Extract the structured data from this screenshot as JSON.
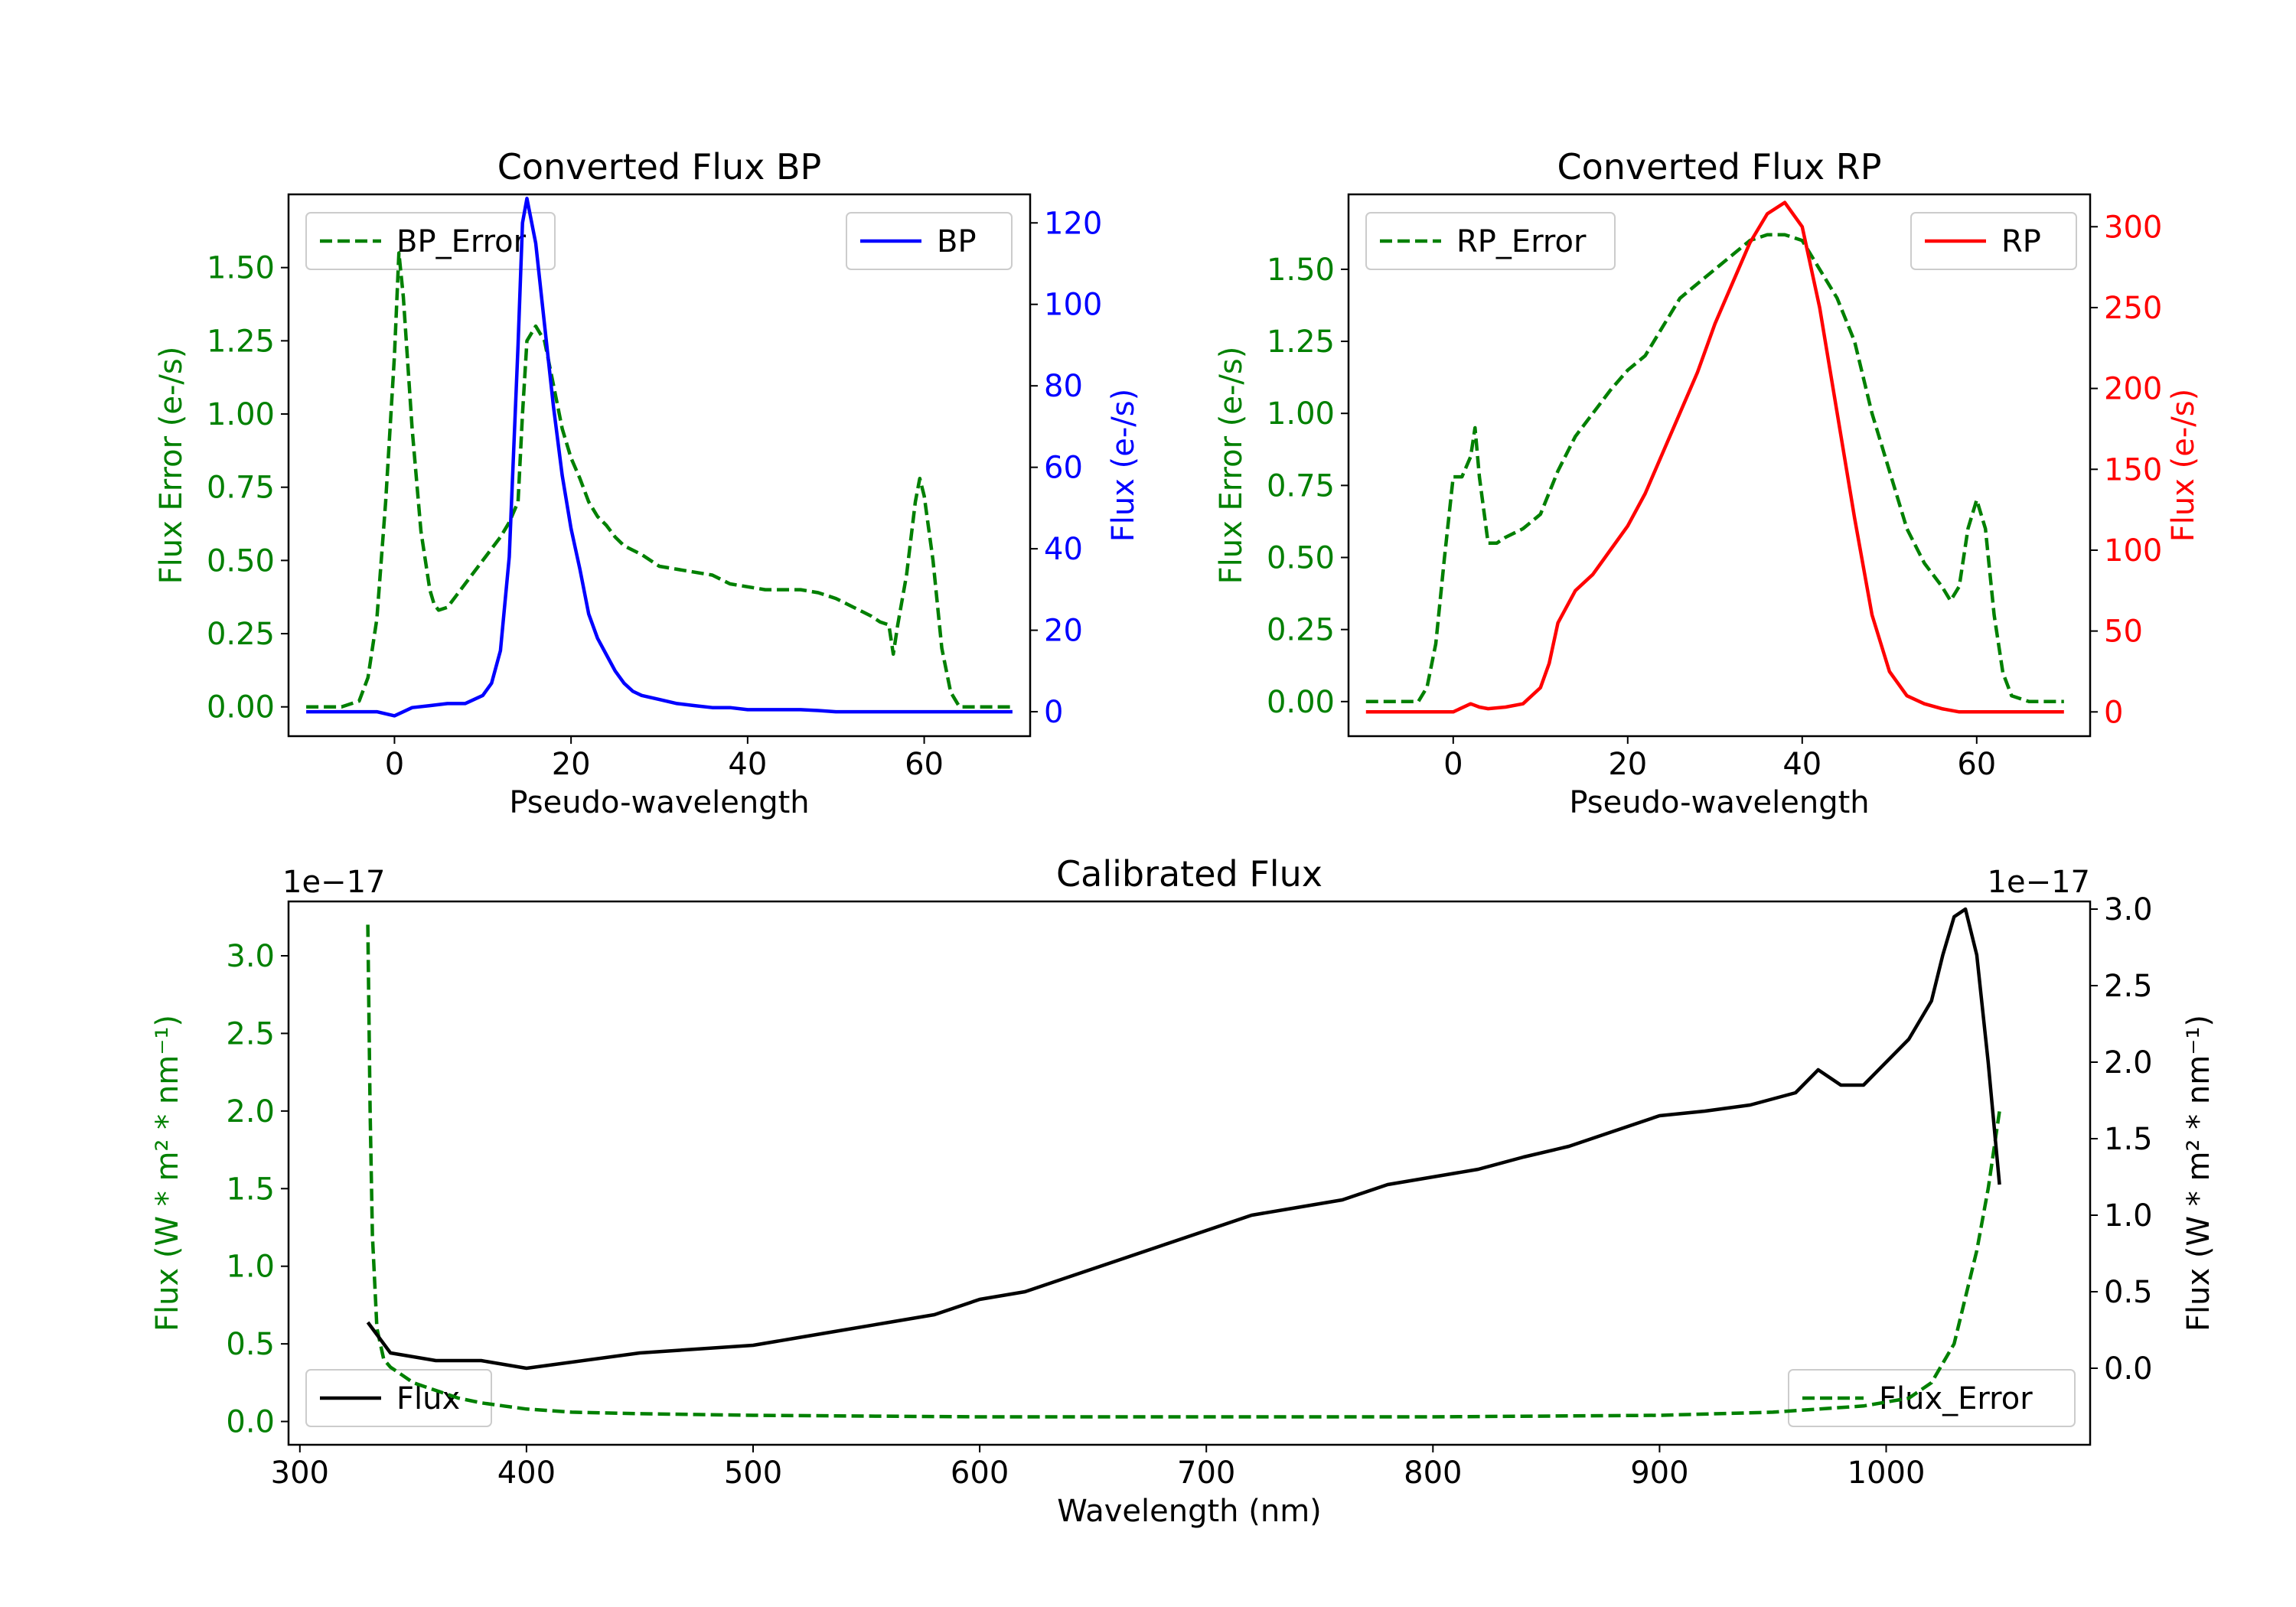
{
  "colors": {
    "error": "#008000",
    "bp": "#0000ff",
    "rp": "#ff0000",
    "flux": "#000000",
    "axis": "#000000"
  },
  "chart_data": [
    {
      "type": "line",
      "title": "Converted Flux BP",
      "xlabel": "Pseudo-wavelength",
      "ylabel": "Flux Error (e-/s)",
      "y2label": "Flux (e-/s)",
      "xlim": [
        -12,
        72
      ],
      "ylim": [
        -0.1,
        1.75
      ],
      "y2lim": [
        -6,
        127
      ],
      "xticks": [
        0,
        20,
        40,
        60
      ],
      "yticks": [
        0.0,
        0.25,
        0.5,
        0.75,
        1.0,
        1.25,
        1.5
      ],
      "ytick_labels": [
        "0.00",
        "0.25",
        "0.50",
        "0.75",
        "1.00",
        "1.25",
        "1.50"
      ],
      "y2ticks": [
        0,
        20,
        40,
        60,
        80,
        100,
        120
      ],
      "legend_left": "top-left",
      "legend_right": "top-right",
      "series": [
        {
          "name": "BP_Error",
          "axis": "left",
          "style": "dashed",
          "color_key": "error",
          "x": [
            -10,
            -6,
            -4,
            -3,
            -2,
            -1,
            0,
            0.5,
            1,
            2,
            3,
            4,
            4.5,
            5,
            6,
            7,
            8,
            10,
            12,
            13,
            14,
            14.5,
            15,
            16,
            17,
            18,
            19,
            20,
            21,
            22,
            23,
            24,
            25,
            26,
            28,
            30,
            32,
            34,
            36,
            38,
            40,
            42,
            44,
            46,
            48,
            50,
            52,
            54,
            55,
            56,
            56.5,
            57,
            58,
            59,
            59.5,
            60,
            61,
            62,
            63,
            64,
            66,
            68,
            70
          ],
          "values": [
            0,
            0,
            0.02,
            0.1,
            0.3,
            0.7,
            1.2,
            1.55,
            1.4,
            0.95,
            0.6,
            0.4,
            0.35,
            0.33,
            0.34,
            0.38,
            0.42,
            0.5,
            0.58,
            0.63,
            0.7,
            1.0,
            1.25,
            1.3,
            1.25,
            1.1,
            0.95,
            0.85,
            0.78,
            0.7,
            0.65,
            0.62,
            0.58,
            0.55,
            0.52,
            0.48,
            0.47,
            0.46,
            0.45,
            0.42,
            0.41,
            0.4,
            0.4,
            0.4,
            0.39,
            0.37,
            0.34,
            0.31,
            0.29,
            0.28,
            0.18,
            0.28,
            0.45,
            0.7,
            0.78,
            0.72,
            0.5,
            0.2,
            0.05,
            0,
            0,
            0,
            0
          ]
        },
        {
          "name": "BP",
          "axis": "right",
          "style": "solid",
          "color_key": "bp",
          "x": [
            -10,
            -4,
            -2,
            0,
            1,
            2,
            4,
            6,
            8,
            10,
            11,
            12,
            13,
            14,
            14.5,
            15,
            16,
            17,
            18,
            19,
            20,
            21,
            22,
            23,
            24,
            25,
            26,
            27,
            28,
            30,
            32,
            34,
            36,
            38,
            40,
            42,
            44,
            46,
            48,
            50,
            52,
            54,
            56,
            58,
            60,
            62,
            64,
            66,
            68,
            70
          ],
          "values": [
            0,
            0,
            0,
            -1,
            0,
            1,
            1.5,
            2,
            2,
            4,
            7,
            15,
            38,
            90,
            120,
            126,
            115,
            95,
            75,
            58,
            45,
            35,
            24,
            18,
            14,
            10,
            7,
            5,
            4,
            3,
            2,
            1.5,
            1,
            1,
            0.5,
            0.5,
            0.5,
            0.5,
            0.3,
            0,
            0,
            0,
            0,
            0,
            0,
            0,
            0,
            0,
            0,
            0
          ]
        }
      ]
    },
    {
      "type": "line",
      "title": "Converted Flux RP",
      "xlabel": "Pseudo-wavelength",
      "ylabel": "Flux Error (e-/s)",
      "y2label": "Flux (e-/s)",
      "xlim": [
        -12,
        73
      ],
      "ylim": [
        -0.12,
        1.76
      ],
      "y2lim": [
        -15,
        320
      ],
      "xticks": [
        0,
        20,
        40,
        60
      ],
      "yticks": [
        0.0,
        0.25,
        0.5,
        0.75,
        1.0,
        1.25,
        1.5
      ],
      "ytick_labels": [
        "0.00",
        "0.25",
        "0.50",
        "0.75",
        "1.00",
        "1.25",
        "1.50"
      ],
      "y2ticks": [
        0,
        50,
        100,
        150,
        200,
        250,
        300
      ],
      "legend_left": "top-left",
      "legend_right": "top-right",
      "series": [
        {
          "name": "RP_Error",
          "axis": "left",
          "style": "dashed",
          "color_key": "error",
          "x": [
            -10,
            -4,
            -3,
            -2,
            -1,
            0,
            1,
            2,
            2.5,
            3,
            4,
            5,
            6,
            8,
            10,
            12,
            14,
            16,
            18,
            20,
            22,
            24,
            26,
            28,
            30,
            32,
            34,
            36,
            38,
            40,
            42,
            44,
            46,
            48,
            50,
            52,
            54,
            56,
            57,
            58,
            59,
            60,
            61,
            62,
            63,
            64,
            66,
            70
          ],
          "values": [
            0,
            0,
            0.05,
            0.2,
            0.5,
            0.78,
            0.78,
            0.85,
            0.95,
            0.78,
            0.55,
            0.55,
            0.57,
            0.6,
            0.65,
            0.8,
            0.92,
            1.0,
            1.08,
            1.15,
            1.2,
            1.3,
            1.4,
            1.45,
            1.5,
            1.55,
            1.6,
            1.62,
            1.62,
            1.6,
            1.5,
            1.4,
            1.25,
            1.0,
            0.8,
            0.6,
            0.48,
            0.4,
            0.35,
            0.4,
            0.6,
            0.7,
            0.6,
            0.3,
            0.1,
            0.02,
            0,
            0
          ]
        },
        {
          "name": "RP",
          "axis": "right",
          "style": "solid",
          "color_key": "rp",
          "x": [
            -10,
            -2,
            0,
            2,
            3,
            4,
            6,
            8,
            10,
            11,
            12,
            13,
            14,
            16,
            18,
            20,
            22,
            24,
            26,
            28,
            30,
            32,
            34,
            36,
            38,
            40,
            42,
            44,
            46,
            48,
            50,
            52,
            54,
            56,
            58,
            60,
            62,
            64,
            66,
            70
          ],
          "values": [
            0,
            0,
            0,
            5,
            3,
            2,
            3,
            5,
            15,
            30,
            55,
            65,
            75,
            85,
            100,
            115,
            135,
            160,
            185,
            210,
            240,
            265,
            290,
            308,
            315,
            300,
            250,
            185,
            120,
            60,
            25,
            10,
            5,
            2,
            0,
            0,
            0,
            0,
            0,
            0
          ]
        }
      ]
    },
    {
      "type": "line",
      "title": "Calibrated Flux",
      "xlabel": "Wavelength (nm)",
      "ylabel": "Flux (W * m² * nm⁻¹)",
      "y2label": "Flux (W * m² * nm⁻¹)",
      "left_offset_text": "1e−17",
      "right_offset_text": "1e−17",
      "xlim": [
        295,
        1090
      ],
      "ylim": [
        -0.15,
        3.35
      ],
      "y2lim": [
        -0.5,
        3.05
      ],
      "xticks": [
        300,
        400,
        500,
        600,
        700,
        800,
        900,
        1000
      ],
      "yticks": [
        0.0,
        0.5,
        1.0,
        1.5,
        2.0,
        2.5,
        3.0
      ],
      "ytick_labels": [
        "0.0",
        "0.5",
        "1.0",
        "1.5",
        "2.0",
        "2.5",
        "3.0"
      ],
      "y2ticks": [
        0.0,
        0.5,
        1.0,
        1.5,
        2.0,
        2.5,
        3.0
      ],
      "y2tick_labels": [
        "0.0",
        "0.5",
        "1.0",
        "1.5",
        "2.0",
        "2.5",
        "3.0"
      ],
      "legend_left": "lower-left",
      "legend_right": "lower-right",
      "series": [
        {
          "name": "Flux_Error",
          "axis": "left",
          "style": "dashed",
          "color_key": "error",
          "x": [
            330,
            331,
            332,
            334,
            337,
            340,
            345,
            350,
            360,
            370,
            380,
            390,
            400,
            420,
            450,
            500,
            550,
            600,
            650,
            700,
            800,
            900,
            950,
            990,
            1010,
            1020,
            1030,
            1035,
            1040,
            1045,
            1050
          ],
          "values": [
            3.2,
            2.0,
            1.2,
            0.6,
            0.4,
            0.35,
            0.3,
            0.25,
            0.2,
            0.15,
            0.12,
            0.1,
            0.08,
            0.06,
            0.05,
            0.04,
            0.035,
            0.03,
            0.03,
            0.03,
            0.03,
            0.04,
            0.06,
            0.1,
            0.15,
            0.25,
            0.5,
            0.8,
            1.1,
            1.5,
            2.0
          ]
        },
        {
          "name": "Flux",
          "axis": "right",
          "style": "solid",
          "color_key": "flux",
          "x": [
            330,
            340,
            360,
            380,
            400,
            450,
            500,
            520,
            540,
            560,
            580,
            600,
            620,
            640,
            660,
            680,
            700,
            720,
            740,
            760,
            780,
            800,
            820,
            840,
            860,
            880,
            900,
            920,
            940,
            960,
            970,
            980,
            990,
            1000,
            1010,
            1020,
            1025,
            1030,
            1035,
            1040,
            1045,
            1050
          ],
          "values": [
            0.3,
            0.1,
            0.05,
            0.05,
            0.0,
            0.1,
            0.15,
            0.2,
            0.25,
            0.3,
            0.35,
            0.45,
            0.5,
            0.6,
            0.7,
            0.8,
            0.9,
            1.0,
            1.05,
            1.1,
            1.2,
            1.25,
            1.3,
            1.38,
            1.45,
            1.55,
            1.65,
            1.68,
            1.72,
            1.8,
            1.95,
            1.85,
            1.85,
            2.0,
            2.15,
            2.4,
            2.7,
            2.95,
            3.0,
            2.7,
            2.0,
            1.2
          ]
        }
      ]
    }
  ]
}
